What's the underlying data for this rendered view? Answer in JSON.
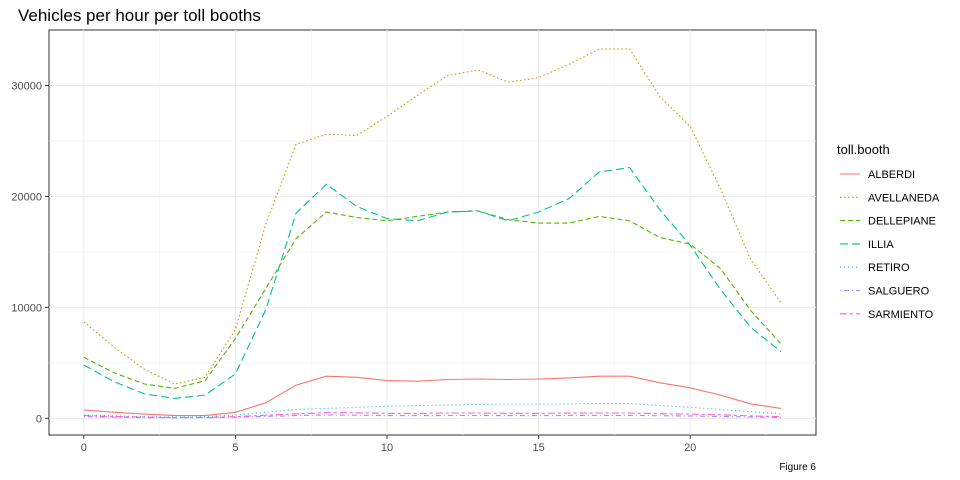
{
  "chart_data": {
    "type": "line",
    "title": "Vehicles per hour per toll booths",
    "caption": "Figure 6",
    "xlabel": "",
    "ylabel": "",
    "xlim": [
      -1.15,
      24.15
    ],
    "ylim": [
      -1500,
      35000
    ],
    "xticks": [
      0,
      5,
      10,
      15,
      20
    ],
    "yticks": [
      0,
      10000,
      20000,
      30000
    ],
    "grid": true,
    "legend": {
      "title": "toll.booth",
      "placement": "right"
    },
    "x": [
      0,
      1,
      2,
      3,
      4,
      5,
      6,
      7,
      8,
      9,
      10,
      11,
      12,
      13,
      14,
      15,
      16,
      17,
      18,
      19,
      20,
      21,
      22,
      23
    ],
    "series": [
      {
        "name": "ALBERDI",
        "color": "#F8766D",
        "dash": "solid",
        "values": [
          750,
          550,
          380,
          250,
          250,
          550,
          1400,
          3000,
          3800,
          3700,
          3400,
          3350,
          3500,
          3550,
          3500,
          3550,
          3650,
          3800,
          3800,
          3200,
          2750,
          2100,
          1300,
          900
        ]
      },
      {
        "name": "AVELLANEDA",
        "color": "#C49A00",
        "dash": "dotted",
        "values": [
          8700,
          6400,
          4400,
          3100,
          3700,
          8000,
          17500,
          24700,
          25600,
          25500,
          27200,
          29100,
          30900,
          31400,
          30300,
          30700,
          31900,
          33300,
          33300,
          29000,
          26300,
          20700,
          14300,
          10400
        ]
      },
      {
        "name": "DELLEPIANE",
        "color": "#53B400",
        "dash": "dashed",
        "values": [
          5500,
          4100,
          3100,
          2700,
          3400,
          7200,
          11700,
          16200,
          18600,
          18100,
          17800,
          18200,
          18600,
          18700,
          17900,
          17600,
          17600,
          18200,
          17800,
          16300,
          15700,
          13500,
          9700,
          6700
        ]
      },
      {
        "name": "ILLIA",
        "color": "#00C094",
        "dash": "longdash",
        "values": [
          4800,
          3300,
          2200,
          1800,
          2100,
          4000,
          9800,
          18500,
          21100,
          19100,
          18000,
          17800,
          18600,
          18700,
          17800,
          18600,
          19800,
          22200,
          22600,
          18800,
          15600,
          11600,
          8200,
          6000
        ]
      },
      {
        "name": "RETIRO",
        "color": "#00B6EB",
        "dash": "dotted2",
        "values": [
          300,
          220,
          150,
          120,
          150,
          300,
          550,
          800,
          900,
          1000,
          1100,
          1150,
          1200,
          1250,
          1300,
          1300,
          1300,
          1350,
          1350,
          1150,
          1000,
          800,
          600,
          400
        ]
      },
      {
        "name": "SALGUERO",
        "color": "#A58AFF",
        "dash": "dotdash",
        "values": [
          150,
          100,
          70,
          50,
          60,
          100,
          180,
          250,
          300,
          280,
          250,
          250,
          260,
          260,
          250,
          250,
          260,
          270,
          270,
          240,
          210,
          170,
          120,
          90
        ]
      },
      {
        "name": "SARMIENTO",
        "color": "#FB61D7",
        "dash": "twodash",
        "values": [
          250,
          170,
          110,
          80,
          90,
          150,
          280,
          400,
          520,
          500,
          450,
          450,
          480,
          480,
          460,
          460,
          470,
          480,
          480,
          420,
          380,
          320,
          220,
          150
        ]
      }
    ]
  }
}
